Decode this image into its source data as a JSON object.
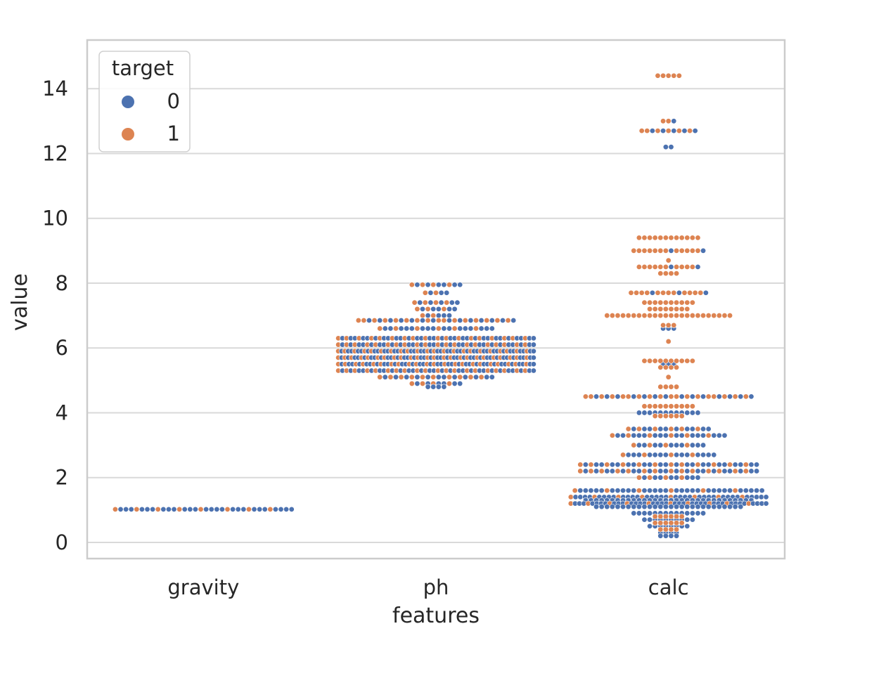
{
  "chart_data": {
    "type": "swarm",
    "xlabel": "features",
    "ylabel": "value",
    "categories": [
      "gravity",
      "ph",
      "calc"
    ],
    "ylim": [
      -0.5,
      15.5
    ],
    "yticks": [
      0,
      2,
      4,
      6,
      8,
      10,
      12,
      14
    ],
    "grid": true,
    "legend": {
      "title": "target",
      "placement": "top-left",
      "entries": [
        {
          "label": "0",
          "color": "#4c72b0"
        },
        {
          "label": "1",
          "color": "#dd8452"
        }
      ]
    },
    "series": [
      {
        "name": "0",
        "color": "#4c72b0",
        "points": {
          "gravity": [
            [
              1.02,
              26
            ]
          ],
          "ph": [
            [
              7.95,
              6
            ],
            [
              7.7,
              3
            ],
            [
              7.4,
              5
            ],
            [
              7.2,
              5
            ],
            [
              7.0,
              4
            ],
            [
              6.85,
              14
            ],
            [
              6.6,
              16
            ],
            [
              6.3,
              30
            ],
            [
              6.1,
              28
            ],
            [
              5.9,
              38
            ],
            [
              5.7,
              36
            ],
            [
              5.5,
              34
            ],
            [
              5.3,
              28
            ],
            [
              5.1,
              12
            ],
            [
              4.9,
              6
            ],
            [
              4.8,
              4
            ]
          ],
          "calc": [
            [
              12.7,
              5
            ],
            [
              12.2,
              2
            ],
            [
              13.0,
              1
            ],
            [
              9.0,
              2
            ],
            [
              8.5,
              2
            ],
            [
              7.7,
              3
            ],
            [
              6.6,
              3
            ],
            [
              5.5,
              3
            ],
            [
              4.5,
              14
            ],
            [
              4.0,
              12
            ],
            [
              3.5,
              10
            ],
            [
              3.3,
              16
            ],
            [
              3.0,
              10
            ],
            [
              2.7,
              14
            ],
            [
              2.4,
              22
            ],
            [
              2.2,
              20
            ],
            [
              2.0,
              8
            ],
            [
              1.6,
              30
            ],
            [
              1.4,
              34
            ],
            [
              1.3,
              32
            ],
            [
              1.2,
              36
            ],
            [
              1.1,
              28
            ],
            [
              0.9,
              14
            ],
            [
              0.7,
              10
            ],
            [
              0.5,
              8
            ],
            [
              0.3,
              4
            ],
            [
              0.2,
              4
            ]
          ]
        }
      },
      {
        "name": "1",
        "color": "#dd8452",
        "points": {
          "gravity": [
            [
              1.02,
              8
            ]
          ],
          "ph": [
            [
              7.95,
              4
            ],
            [
              7.7,
              2
            ],
            [
              7.4,
              4
            ],
            [
              7.2,
              3
            ],
            [
              7.0,
              2
            ],
            [
              6.85,
              16
            ],
            [
              6.6,
              6
            ],
            [
              6.3,
              18
            ],
            [
              6.1,
              20
            ],
            [
              5.9,
              22
            ],
            [
              5.7,
              24
            ],
            [
              5.5,
              22
            ],
            [
              5.3,
              20
            ],
            [
              5.1,
              10
            ],
            [
              4.9,
              4
            ]
          ],
          "calc": [
            [
              14.4,
              5
            ],
            [
              12.7,
              6
            ],
            [
              13.0,
              2
            ],
            [
              9.4,
              12
            ],
            [
              9.0,
              12
            ],
            [
              8.7,
              1
            ],
            [
              8.5,
              10
            ],
            [
              8.3,
              4
            ],
            [
              7.7,
              12
            ],
            [
              7.4,
              10
            ],
            [
              7.2,
              8
            ],
            [
              7.0,
              24
            ],
            [
              6.7,
              3
            ],
            [
              6.2,
              1
            ],
            [
              5.6,
              10
            ],
            [
              5.4,
              4
            ],
            [
              5.1,
              1
            ],
            [
              4.8,
              4
            ],
            [
              4.5,
              18
            ],
            [
              4.2,
              10
            ],
            [
              3.9,
              6
            ],
            [
              3.5,
              6
            ],
            [
              3.3,
              6
            ],
            [
              3.0,
              4
            ],
            [
              2.7,
              4
            ],
            [
              2.4,
              12
            ],
            [
              2.2,
              14
            ],
            [
              2.0,
              4
            ],
            [
              1.6,
              6
            ],
            [
              1.4,
              8
            ],
            [
              1.2,
              10
            ],
            [
              0.8,
              6
            ],
            [
              0.6,
              6
            ],
            [
              0.4,
              4
            ]
          ]
        }
      }
    ]
  }
}
